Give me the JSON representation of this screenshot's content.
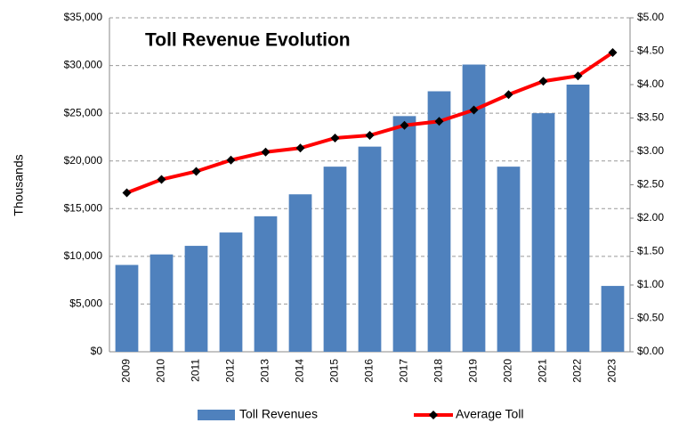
{
  "chart_data": {
    "type": "bar",
    "title": "Toll Revenue Evolution",
    "y_label": "Thousands",
    "categories": [
      "2009",
      "2010",
      "2011",
      "2012",
      "2013",
      "2014",
      "2015",
      "2016",
      "2017",
      "2018",
      "2019",
      "2020",
      "2021",
      "2022",
      "2023"
    ],
    "series": [
      {
        "name": "Toll Revenues",
        "type": "bar",
        "color": "#4f81bd",
        "values": [
          9100,
          10200,
          11100,
          12500,
          14200,
          16500,
          19400,
          21500,
          24700,
          27300,
          30100,
          19400,
          25000,
          28000,
          6900
        ]
      },
      {
        "name": "Average Toll",
        "type": "line",
        "axis": "y2",
        "color": "#ff0000",
        "marker_color": "#000000",
        "values": [
          2.38,
          2.58,
          2.7,
          2.87,
          2.99,
          3.05,
          3.2,
          3.24,
          3.39,
          3.45,
          3.62,
          3.85,
          4.05,
          4.13,
          4.48
        ]
      }
    ],
    "ylim": [
      0,
      35000
    ],
    "yticks": [
      {
        "value": 0,
        "label": "$0"
      },
      {
        "value": 5000,
        "label": "$5,000"
      },
      {
        "value": 10000,
        "label": "$10,000"
      },
      {
        "value": 15000,
        "label": "$15,000"
      },
      {
        "value": 20000,
        "label": "$20,000"
      },
      {
        "value": 25000,
        "label": "$25,000"
      },
      {
        "value": 30000,
        "label": "$30,000"
      },
      {
        "value": 35000,
        "label": "$35,000"
      }
    ],
    "y2lim": [
      0,
      5
    ],
    "y2ticks": [
      {
        "value": 0,
        "label": "$0.00"
      },
      {
        "value": 0.5,
        "label": "$0.50"
      },
      {
        "value": 1,
        "label": "$1.00"
      },
      {
        "value": 1.5,
        "label": "$1.50"
      },
      {
        "value": 2,
        "label": "$2.00"
      },
      {
        "value": 2.5,
        "label": "$2.50"
      },
      {
        "value": 3,
        "label": "$3.00"
      },
      {
        "value": 3.5,
        "label": "$3.50"
      },
      {
        "value": 4,
        "label": "$4.00"
      },
      {
        "value": 4.5,
        "label": "$4.50"
      },
      {
        "value": 5,
        "label": "$5.00"
      }
    ],
    "grid": true,
    "legend": "bottom"
  }
}
